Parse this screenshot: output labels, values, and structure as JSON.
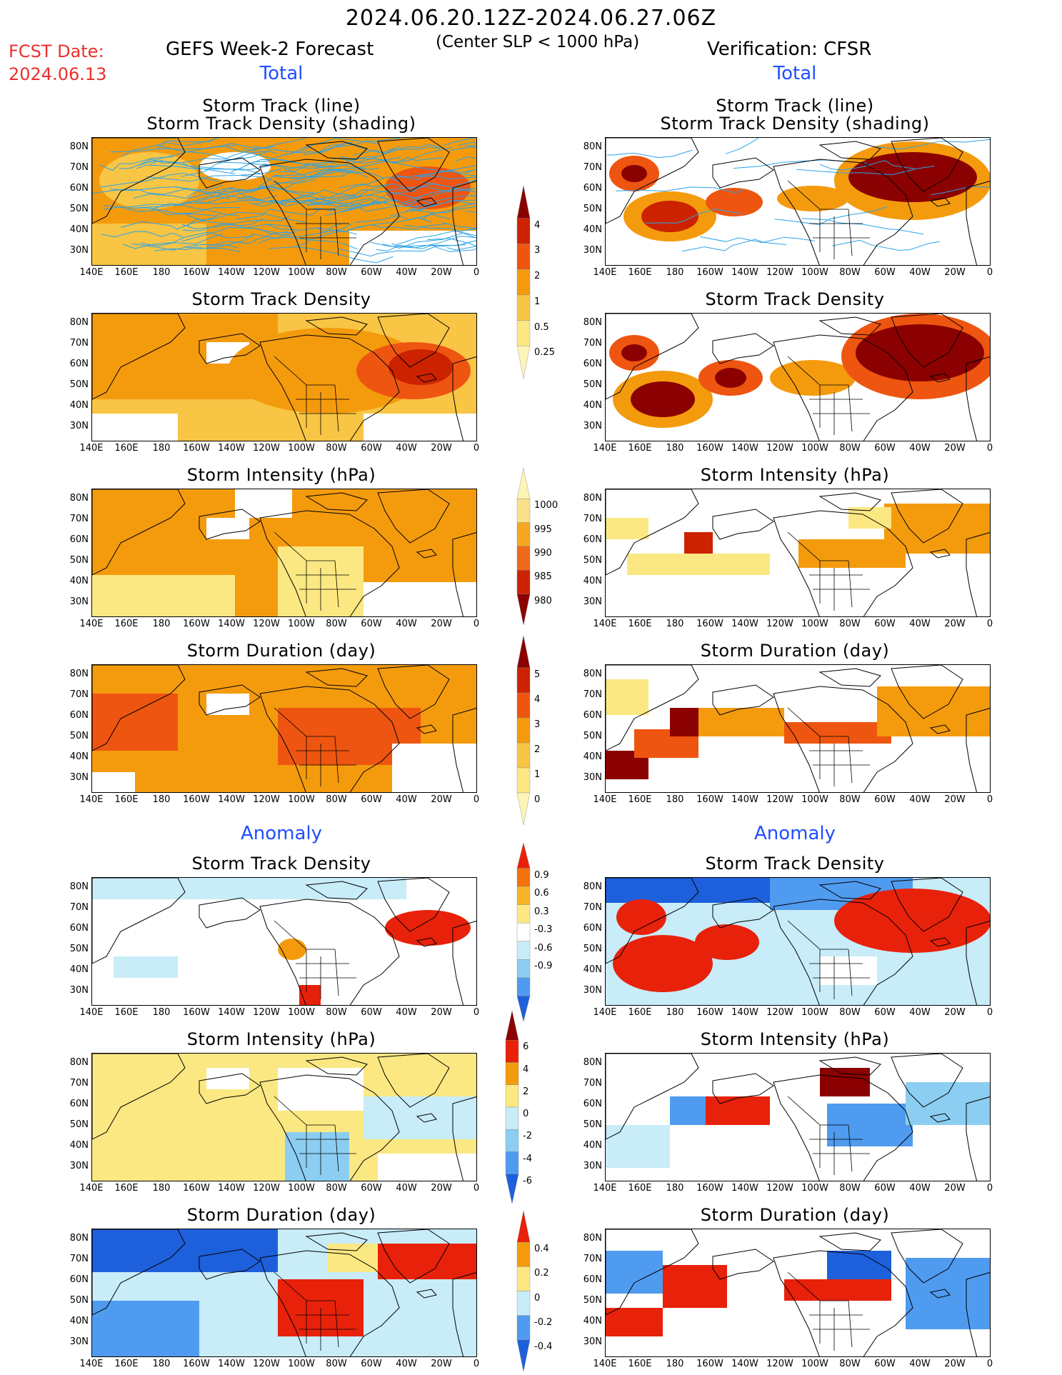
{
  "header": {
    "period": "2024.06.20.12Z-2024.06.27.06Z",
    "threshold": "(Center SLP < 1000 hPa)",
    "fcst_date_label": "FCST Date:",
    "fcst_date": "2024.06.13",
    "model": "GEFS Week-2 Forecast",
    "verification": "Verification: CFSR",
    "section_total": "Total",
    "section_anomaly": "Anomaly"
  },
  "panel_titles": {
    "track_line": "Storm Track (line)",
    "track_density_shading": "Storm Track Density (shading)",
    "track_density": "Storm Track Density",
    "intensity": "Storm Intensity (hPa)",
    "duration": "Storm Duration (day)"
  },
  "axes": {
    "lat_labels": [
      "80N",
      "70N",
      "60N",
      "50N",
      "40N",
      "30N"
    ],
    "lon_labels": [
      "140E",
      "160E",
      "180",
      "160W",
      "140W",
      "120W",
      "100W",
      "80W",
      "60W",
      "40W",
      "20W",
      "0"
    ]
  },
  "colorbars": {
    "density": {
      "labels": [
        "4",
        "3",
        "2",
        "1",
        "0.5",
        "0.25"
      ],
      "colors": [
        "#8b0000",
        "#cc2200",
        "#ee5511",
        "#f39a0d",
        "#f8c545",
        "#fce883",
        "#fdf5b8"
      ]
    },
    "intensity": {
      "labels": [
        "1000",
        "995",
        "990",
        "985",
        "980"
      ],
      "colors": [
        "#fdf5b8",
        "#fbe08a",
        "#f5a623",
        "#ee6a1a",
        "#cc2200",
        "#8b0000"
      ]
    },
    "duration": {
      "labels": [
        "5",
        "4",
        "3",
        "2",
        "1",
        "0"
      ],
      "colors": [
        "#8b0000",
        "#cc2200",
        "#ee5511",
        "#f39a0d",
        "#f8c545",
        "#fce883",
        "#fdf5b8"
      ]
    },
    "anom_density": {
      "labels": [
        "0.9",
        "0.6",
        "0.3",
        "-0.3",
        "-0.6",
        "-0.9"
      ],
      "colors": [
        "#e8220a",
        "#f4720e",
        "#f8b52a",
        "#fce883",
        "#ffffff",
        "#c8ecf8",
        "#8ccdf2",
        "#4f9bef",
        "#1e5fdc"
      ]
    },
    "anom_intensity": {
      "labels": [
        "6",
        "4",
        "2",
        "0",
        "-2",
        "-4",
        "-6"
      ],
      "colors": [
        "#8b0000",
        "#e8220a",
        "#f39a0d",
        "#fce883",
        "#c8ecf8",
        "#8ccdf2",
        "#4f9bef",
        "#1e5fdc"
      ]
    },
    "anom_duration": {
      "labels": [
        "0.4",
        "0.2",
        "0",
        "-0.2",
        "-0.4"
      ],
      "colors": [
        "#e8220a",
        "#f39a0d",
        "#fce883",
        "#c8ecf8",
        "#4f9bef",
        "#1e5fdc"
      ]
    }
  }
}
